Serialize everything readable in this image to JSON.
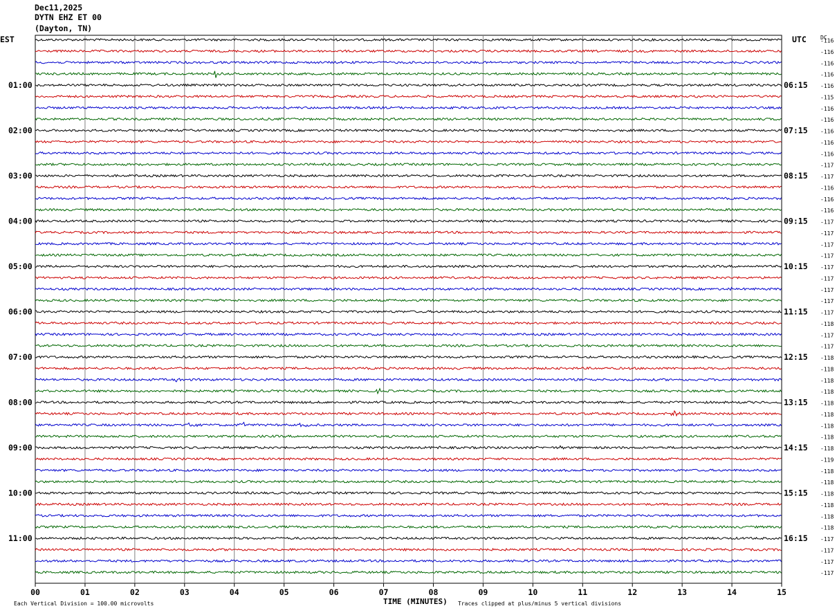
{
  "header": {
    "date": "Dec11,2025",
    "station": "DYTN EHZ ET 00",
    "location": "(Dayton, TN)"
  },
  "left_tz": "EST",
  "right_tz": "UTC",
  "dc_label": "DC",
  "footer": {
    "scale": "Each Vertical Division =  100.00 microvolts",
    "xaxis_title": "TIME (MINUTES)",
    "clip_note": "Traces clipped at plus/minus 5 vertical divisions"
  },
  "colors": {
    "trace_cycle": [
      "#000000",
      "#cc0000",
      "#0000cc",
      "#006600"
    ],
    "grid": "#808080"
  },
  "chart_data": {
    "type": "line",
    "title": "DYTN EHZ ET 00",
    "xlabel": "TIME (MINUTES)",
    "x_ticks": [
      "00",
      "01",
      "02",
      "03",
      "04",
      "05",
      "06",
      "07",
      "08",
      "09",
      "10",
      "11",
      "12",
      "13",
      "14",
      "15"
    ],
    "xlim": [
      0,
      15
    ],
    "est_hour_labels": [
      "01:00",
      "02:00",
      "03:00",
      "04:00",
      "05:00",
      "06:00",
      "07:00",
      "08:00",
      "09:00",
      "10:00",
      "11:00"
    ],
    "utc_hour_labels": [
      "06:15",
      "07:15",
      "08:15",
      "09:15",
      "10:15",
      "11:15",
      "12:15",
      "13:15",
      "14:15",
      "15:15",
      "16:15"
    ],
    "dc_offsets": [
      -116,
      -116,
      -116,
      -116,
      -116,
      -115,
      -116,
      -116,
      -116,
      -116,
      -116,
      -117,
      -117,
      -116,
      -116,
      -116,
      -117,
      -117,
      -117,
      -117,
      -117,
      -117,
      -117,
      -117,
      -117,
      -118,
      -117,
      -117,
      -118,
      -118,
      -118,
      -118,
      -118,
      -118,
      -118,
      -118,
      -118,
      -119,
      -118,
      -118,
      -118,
      -118,
      -118,
      -118,
      -117,
      -117,
      -117,
      -117
    ],
    "events": [
      {
        "trace": 3,
        "minute": 3.65,
        "amp": 5
      },
      {
        "trace": 30,
        "minute": 2.8,
        "amp": 3
      },
      {
        "trace": 31,
        "minute": 6.9,
        "amp": 3
      },
      {
        "trace": 34,
        "minute": 3.15,
        "amp": 3
      },
      {
        "trace": 34,
        "minute": 4.2,
        "amp": 3
      },
      {
        "trace": 34,
        "minute": 5.4,
        "amp": 3
      },
      {
        "trace": 35,
        "minute": 12.6,
        "amp": 3
      },
      {
        "trace": 36,
        "minute": 8.1,
        "amp": 2
      },
      {
        "trace": 36,
        "minute": 10.6,
        "amp": 3
      },
      {
        "trace": 33,
        "minute": 12.85,
        "amp": 3
      },
      {
        "trace": 22,
        "minute": 14.0,
        "amp": 2
      },
      {
        "trace": 30,
        "minute": 11.3,
        "amp": 2
      }
    ]
  }
}
